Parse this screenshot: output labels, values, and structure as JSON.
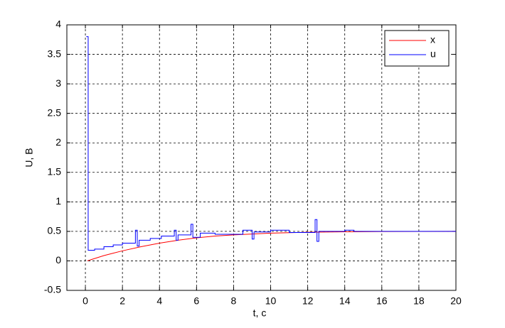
{
  "chart_data": {
    "type": "line",
    "xlabel": "t, c",
    "ylabel": "U, B",
    "xlim": [
      -1,
      20
    ],
    "xticks": [
      0,
      2,
      4,
      6,
      8,
      10,
      12,
      14,
      16,
      18,
      20
    ],
    "ylim": [
      -0.5,
      4
    ],
    "yticks": [
      -0.5,
      0,
      0.5,
      1,
      1.5,
      2,
      2.5,
      3,
      3.5,
      4
    ],
    "grid": true,
    "legend": "upper right",
    "series": [
      {
        "name": "x",
        "color": "#ff0000",
        "x": [
          0.1,
          0.5,
          1,
          1.5,
          2,
          3,
          4,
          5,
          6,
          7,
          8,
          10,
          12,
          14,
          16,
          18,
          20
        ],
        "values": [
          0,
          0.04,
          0.09,
          0.13,
          0.17,
          0.24,
          0.3,
          0.35,
          0.39,
          0.42,
          0.44,
          0.47,
          0.485,
          0.493,
          0.497,
          0.499,
          0.5
        ]
      },
      {
        "name": "u",
        "color": "#0000ff",
        "x": [
          0.05,
          0.15,
          0.15,
          0.5,
          0.5,
          1.0,
          1.0,
          1.5,
          1.5,
          2.0,
          2.0,
          2.7,
          2.7,
          2.8,
          2.8,
          2.9,
          2.9,
          3.5,
          3.5,
          4.1,
          4.1,
          4.8,
          4.8,
          4.9,
          4.9,
          5.0,
          5.0,
          5.7,
          5.7,
          5.8,
          5.8,
          6.2,
          6.2,
          7,
          7,
          8.5,
          8.5,
          9,
          9,
          9.1,
          9.1,
          10,
          10,
          11,
          11,
          12.4,
          12.4,
          12.5,
          12.5,
          12.6,
          12.6,
          14,
          14,
          14.5,
          14.5,
          20
        ],
        "values": [
          3.8,
          3.8,
          0.18,
          0.18,
          0.2,
          0.2,
          0.24,
          0.24,
          0.27,
          0.27,
          0.3,
          0.3,
          0.52,
          0.52,
          0.25,
          0.25,
          0.35,
          0.35,
          0.38,
          0.38,
          0.42,
          0.42,
          0.52,
          0.52,
          0.35,
          0.35,
          0.44,
          0.44,
          0.62,
          0.62,
          0.4,
          0.4,
          0.47,
          0.47,
          0.45,
          0.45,
          0.52,
          0.52,
          0.37,
          0.37,
          0.49,
          0.49,
          0.52,
          0.52,
          0.48,
          0.48,
          0.7,
          0.7,
          0.33,
          0.33,
          0.5,
          0.5,
          0.52,
          0.52,
          0.5,
          0.5
        ]
      }
    ]
  }
}
